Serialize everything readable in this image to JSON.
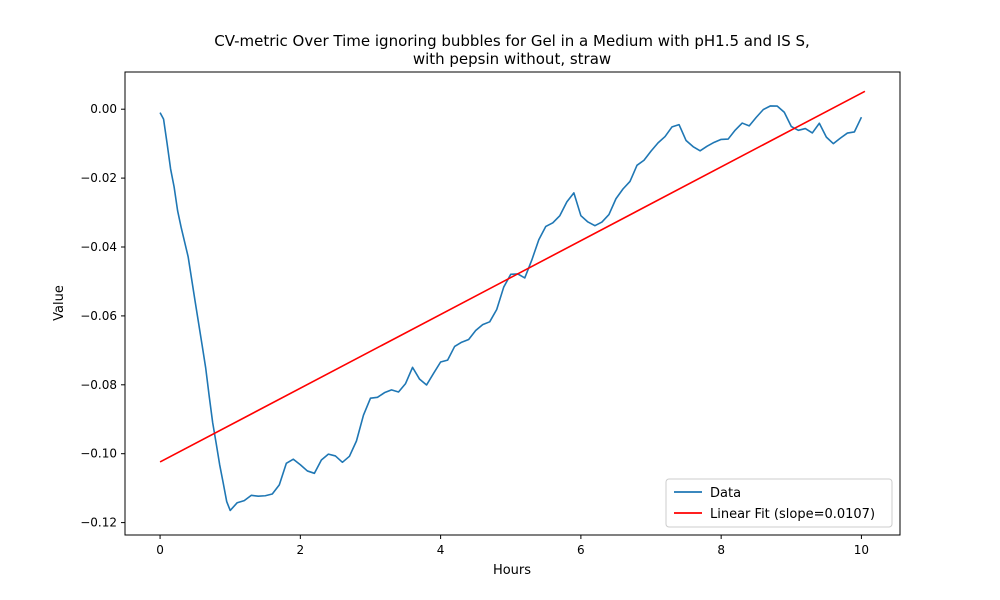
{
  "chart_data": {
    "type": "line",
    "title_line1": "CV-metric Over Time ignoring bubbles for Gel in a Medium with pH1.5 and IS S,",
    "title_line2": "with pepsin without, straw",
    "xlabel": "Hours",
    "ylabel": "Value",
    "xlim": [
      -0.5,
      10.55
    ],
    "ylim": [
      -0.1236,
      0.0108
    ],
    "x_ticks": [
      0,
      2,
      4,
      6,
      8,
      10
    ],
    "x_tick_labels": [
      "0",
      "2",
      "4",
      "6",
      "8",
      "10"
    ],
    "y_ticks": [
      0.0,
      -0.02,
      -0.04,
      -0.06,
      -0.08,
      -0.1,
      -0.12
    ],
    "y_tick_labels": [
      "0.00",
      "−0.02",
      "−0.04",
      "−0.06",
      "−0.08",
      "−0.10",
      "−0.12"
    ],
    "grid": false,
    "legend_position": "lower-right",
    "series": [
      {
        "name": "Data",
        "color": "#1f77b4",
        "x": [
          0,
          0.05,
          0.1,
          0.15,
          0.2,
          0.25,
          0.3,
          0.4,
          0.5,
          0.6,
          0.65,
          0.7,
          0.75,
          0.8,
          0.85,
          0.9,
          0.95,
          1.0,
          1.1,
          1.2,
          1.3,
          1.4,
          1.5,
          1.6,
          1.7,
          1.8,
          1.9,
          2.0,
          2.1,
          2.2,
          2.3,
          2.4,
          2.5,
          2.6,
          2.7,
          2.8,
          2.9,
          3.0,
          3.1,
          3.2,
          3.3,
          3.4,
          3.5,
          3.6,
          3.7,
          3.8,
          3.9,
          4.0,
          4.1,
          4.2,
          4.3,
          4.4,
          4.5,
          4.6,
          4.7,
          4.8,
          4.9,
          5.0,
          5.1,
          5.2,
          5.3,
          5.4,
          5.5,
          5.6,
          5.7,
          5.8,
          5.9,
          6.0,
          6.1,
          6.2,
          6.3,
          6.4,
          6.5,
          6.6,
          6.7,
          6.8,
          6.9,
          7.0,
          7.1,
          7.2,
          7.3,
          7.4,
          7.5,
          7.6,
          7.7,
          7.8,
          7.9,
          8.0,
          8.1,
          8.2,
          8.3,
          8.4,
          8.5,
          8.6,
          8.7,
          8.8,
          8.9,
          9.0,
          9.1,
          9.2,
          9.3,
          9.4,
          9.5,
          9.6,
          9.7,
          9.8,
          9.9,
          10.0
        ],
        "y": [
          -0.001,
          -0.004,
          -0.01,
          -0.018,
          -0.023,
          -0.03,
          -0.035,
          -0.043,
          -0.055,
          -0.068,
          -0.075,
          -0.083,
          -0.09,
          -0.097,
          -0.103,
          -0.109,
          -0.115,
          -0.117,
          -0.115,
          -0.114,
          -0.113,
          -0.113,
          -0.113,
          -0.111,
          -0.108,
          -0.102,
          -0.101,
          -0.102,
          -0.104,
          -0.105,
          -0.103,
          -0.101,
          -0.101,
          -0.103,
          -0.101,
          -0.097,
          -0.09,
          -0.085,
          -0.083,
          -0.082,
          -0.081,
          -0.082,
          -0.079,
          -0.074,
          -0.078,
          -0.081,
          -0.077,
          -0.074,
          -0.073,
          -0.069,
          -0.068,
          -0.067,
          -0.064,
          -0.062,
          -0.061,
          -0.058,
          -0.051,
          -0.047,
          -0.047,
          -0.048,
          -0.044,
          -0.038,
          -0.035,
          -0.033,
          -0.031,
          -0.027,
          -0.025,
          -0.03,
          -0.032,
          -0.033,
          -0.032,
          -0.03,
          -0.025,
          -0.022,
          -0.02,
          -0.017,
          -0.015,
          -0.013,
          -0.01,
          -0.008,
          -0.006,
          -0.005,
          -0.008,
          -0.01,
          -0.011,
          -0.01,
          -0.009,
          -0.008,
          -0.008,
          -0.006,
          -0.005,
          -0.005,
          -0.003,
          -0.001,
          0.0,
          0.0,
          -0.002,
          -0.004,
          -0.005,
          -0.005,
          -0.006,
          -0.004,
          -0.007,
          -0.009,
          -0.009,
          -0.008,
          -0.007,
          -0.003
        ]
      },
      {
        "name": "Linear Fit (slope=0.0107)",
        "color": "#ff0000",
        "x": [
          0,
          10.05
        ],
        "y": [
          -0.1024,
          0.0052
        ]
      }
    ]
  }
}
